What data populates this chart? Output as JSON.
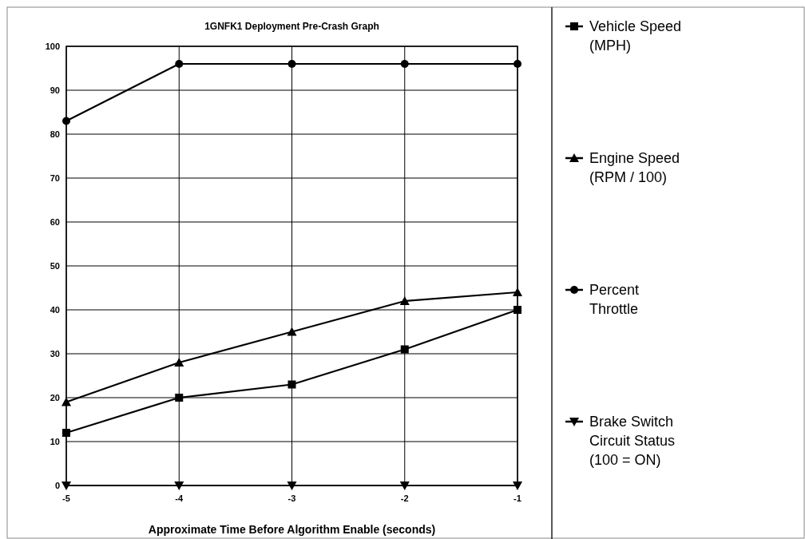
{
  "chart_data": {
    "type": "line",
    "title": "1GNFK1 Deployment Pre-Crash Graph",
    "xlabel": "Approximate Time Before Algorithm Enable (seconds)",
    "x": [
      -5,
      -4,
      -3,
      -2,
      -1
    ],
    "xlim": [
      -5,
      -1
    ],
    "xticks": [
      -5,
      -4,
      -3,
      -2,
      -1
    ],
    "ylim": [
      0,
      100
    ],
    "yticks": [
      0,
      10,
      20,
      30,
      40,
      50,
      60,
      70,
      80,
      90,
      100
    ],
    "grid": true,
    "legend": "right",
    "line_style": "solid",
    "series": [
      {
        "name": "Vehicle Speed (MPH)",
        "color": "#000000",
        "marker": "square",
        "values": [
          12,
          20,
          23,
          31,
          40
        ]
      },
      {
        "name": "Engine Speed (RPM / 100)",
        "color": "#000000",
        "marker": "triangle",
        "values": [
          19,
          28,
          35,
          42,
          44
        ]
      },
      {
        "name": "Percent Throttle",
        "color": "#000000",
        "marker": "circle",
        "values": [
          83,
          96,
          96,
          96,
          96
        ]
      },
      {
        "name": "Brake Switch Circuit Status (100 = ON)",
        "color": "#000000",
        "marker": "triangle-down",
        "values": [
          0,
          0,
          0,
          0,
          0
        ]
      }
    ]
  }
}
